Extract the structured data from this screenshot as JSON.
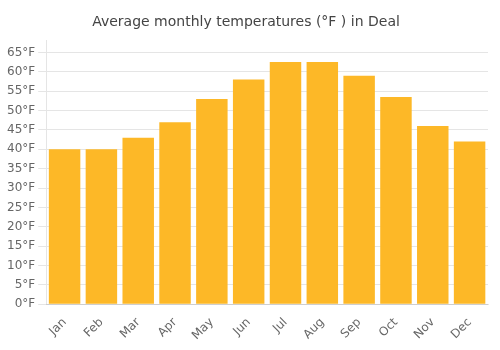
{
  "chart_data": {
    "type": "bar",
    "title": "Average monthly temperatures (°F ) in Deal",
    "categories": [
      "Jan",
      "Feb",
      "Mar",
      "Apr",
      "May",
      "Jun",
      "Jul",
      "Aug",
      "Sep",
      "Oct",
      "Nov",
      "Dec"
    ],
    "values": [
      40,
      40,
      43,
      47,
      53,
      58,
      62.5,
      62.5,
      59,
      53.5,
      46,
      42
    ],
    "color": "#FDB827",
    "ylim": [
      0,
      68
    ],
    "yticks": [
      {
        "value": 0,
        "label": "0°F"
      },
      {
        "value": 5,
        "label": "5°F"
      },
      {
        "value": 10,
        "label": "10°F"
      },
      {
        "value": 15,
        "label": "15°F"
      },
      {
        "value": 20,
        "label": "20°F"
      },
      {
        "value": 25,
        "label": "25°F"
      },
      {
        "value": 30,
        "label": "30°F"
      },
      {
        "value": 35,
        "label": "35°F"
      },
      {
        "value": 40,
        "label": "40°F"
      },
      {
        "value": 45,
        "label": "45°F"
      },
      {
        "value": 50,
        "label": "50°F"
      },
      {
        "value": 55,
        "label": "55°F"
      },
      {
        "value": 60,
        "label": "60°F"
      },
      {
        "value": 65,
        "label": "65°F"
      }
    ],
    "grid": true
  }
}
